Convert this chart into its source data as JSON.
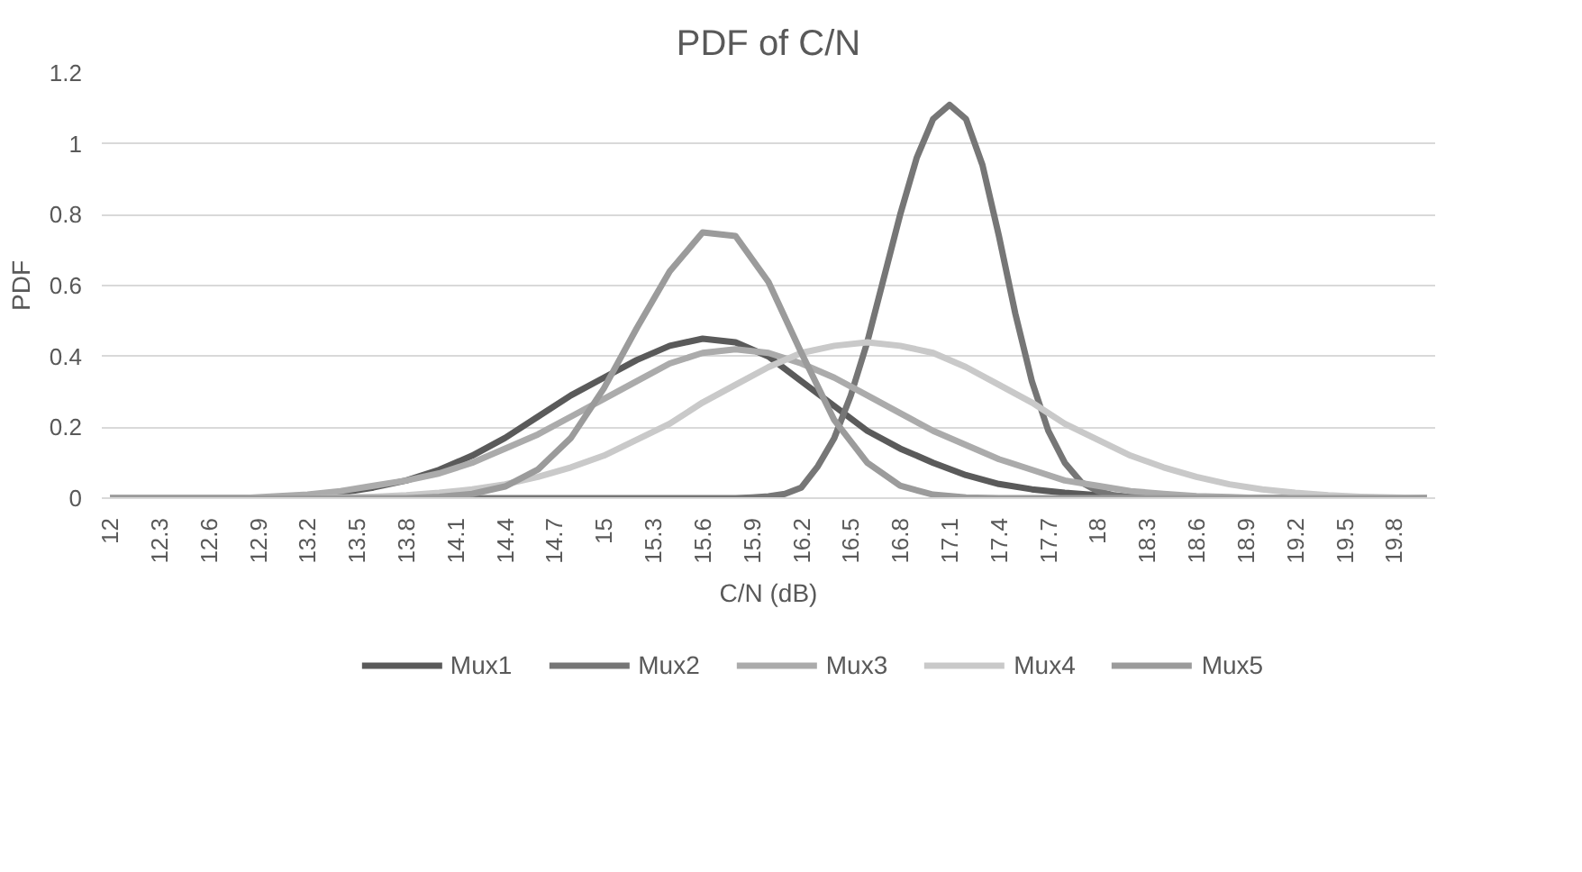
{
  "chart_data": {
    "type": "line",
    "title": "PDF of C/N",
    "xlabel": "C/N (dB)",
    "ylabel": "PDF",
    "x": [
      12,
      12.2,
      12.4,
      12.6,
      12.8,
      13,
      13.2,
      13.4,
      13.6,
      13.8,
      14,
      14.2,
      14.4,
      14.6,
      14.8,
      15,
      15.2,
      15.4,
      15.6,
      15.8,
      16,
      16.2,
      16.4,
      16.6,
      16.8,
      17,
      17.2,
      17.4,
      17.6,
      17.8,
      18,
      18.2,
      18.4,
      18.6,
      18.8,
      19,
      19.2,
      19.4,
      19.6,
      19.8,
      20
    ],
    "xlim": [
      11.95,
      20.05
    ],
    "xticks": [
      12,
      12.3,
      12.6,
      12.9,
      13.2,
      13.5,
      13.8,
      14.1,
      14.4,
      14.7,
      15,
      15.3,
      15.6,
      15.9,
      16.2,
      16.5,
      16.8,
      17.1,
      17.4,
      17.7,
      18,
      18.3,
      18.6,
      18.9,
      19.2,
      19.5,
      19.8
    ],
    "ylim": [
      0,
      1.2
    ],
    "yticks": [
      0,
      0.2,
      0.4,
      0.6,
      0.8,
      1,
      1.2
    ],
    "grid": "y",
    "legend": "bottom",
    "series": [
      {
        "name": "Mux1",
        "color": "#5a5a5a",
        "values": [
          0,
          0,
          0,
          0,
          0,
          0.002,
          0.005,
          0.015,
          0.03,
          0.05,
          0.08,
          0.12,
          0.17,
          0.23,
          0.29,
          0.34,
          0.39,
          0.43,
          0.45,
          0.44,
          0.4,
          0.33,
          0.26,
          0.19,
          0.14,
          0.1,
          0.065,
          0.04,
          0.025,
          0.015,
          0.008,
          0.003,
          0,
          0,
          0,
          0,
          0,
          0,
          0,
          0,
          0
        ]
      },
      {
        "name": "Mux2",
        "color": "#767676",
        "x": [
          12,
          15.8,
          15.9,
          16,
          16.1,
          16.2,
          16.3,
          16.4,
          16.5,
          16.6,
          16.7,
          16.8,
          16.9,
          17,
          17.1,
          17.2,
          17.3,
          17.4,
          17.5,
          17.6,
          17.7,
          17.8,
          17.9,
          18,
          18.1,
          18.2,
          18.3,
          18.4,
          20
        ],
        "values": [
          0,
          0,
          0.002,
          0.005,
          0.012,
          0.03,
          0.09,
          0.17,
          0.29,
          0.44,
          0.62,
          0.8,
          0.96,
          1.07,
          1.11,
          1.07,
          0.94,
          0.74,
          0.52,
          0.33,
          0.19,
          0.1,
          0.045,
          0.02,
          0.008,
          0.003,
          0,
          0,
          0
        ]
      },
      {
        "name": "Mux3",
        "color": "#ababab",
        "values": [
          0,
          0,
          0,
          0,
          0,
          0.005,
          0.01,
          0.02,
          0.035,
          0.05,
          0.07,
          0.1,
          0.14,
          0.18,
          0.23,
          0.28,
          0.33,
          0.38,
          0.41,
          0.42,
          0.41,
          0.38,
          0.34,
          0.29,
          0.24,
          0.19,
          0.15,
          0.11,
          0.08,
          0.05,
          0.035,
          0.02,
          0.012,
          0.006,
          0.003,
          0,
          0,
          0,
          0,
          0,
          0
        ]
      },
      {
        "name": "Mux4",
        "color": "#c9c9c9",
        "values": [
          0,
          0,
          0,
          0,
          0,
          0,
          0,
          0.002,
          0.004,
          0.008,
          0.015,
          0.025,
          0.039,
          0.06,
          0.087,
          0.12,
          0.165,
          0.21,
          0.27,
          0.32,
          0.37,
          0.41,
          0.43,
          0.44,
          0.43,
          0.41,
          0.37,
          0.32,
          0.27,
          0.21,
          0.165,
          0.12,
          0.087,
          0.06,
          0.039,
          0.025,
          0.015,
          0.008,
          0.004,
          0.002,
          0
        ]
      },
      {
        "name": "Mux5",
        "color": "#9b9b9b",
        "values": [
          0,
          0,
          0,
          0,
          0,
          0,
          0,
          0,
          0,
          0,
          0.004,
          0.012,
          0.033,
          0.081,
          0.17,
          0.31,
          0.48,
          0.64,
          0.75,
          0.74,
          0.61,
          0.41,
          0.22,
          0.1,
          0.035,
          0.01,
          0.002,
          0,
          0,
          0,
          0,
          0,
          0,
          0,
          0,
          0,
          0,
          0,
          0,
          0,
          0
        ]
      }
    ]
  }
}
